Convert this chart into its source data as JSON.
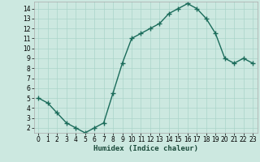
{
  "x": [
    0,
    1,
    2,
    3,
    4,
    5,
    6,
    7,
    8,
    9,
    10,
    11,
    12,
    13,
    14,
    15,
    16,
    17,
    18,
    19,
    20,
    21,
    22,
    23
  ],
  "y": [
    5.0,
    4.5,
    3.5,
    2.5,
    2.0,
    1.5,
    2.0,
    2.5,
    5.5,
    8.5,
    11.0,
    11.5,
    12.0,
    12.5,
    13.5,
    14.0,
    14.5,
    14.0,
    13.0,
    11.5,
    9.0,
    8.5,
    9.0,
    8.5
  ],
  "xlabel": "Humidex (Indice chaleur)",
  "xlim": [
    -0.5,
    23.5
  ],
  "ylim": [
    1.5,
    14.7
  ],
  "yticks": [
    2,
    3,
    4,
    5,
    6,
    7,
    8,
    9,
    10,
    11,
    12,
    13,
    14
  ],
  "xticks": [
    0,
    1,
    2,
    3,
    4,
    5,
    6,
    7,
    8,
    9,
    10,
    11,
    12,
    13,
    14,
    15,
    16,
    17,
    18,
    19,
    20,
    21,
    22,
    23
  ],
  "line_color": "#1a6b5a",
  "marker_color": "#1a6b5a",
  "bg_color": "#cce8e0",
  "grid_color": "#aad4ca",
  "tick_label_fontsize": 5.5,
  "xlabel_fontsize": 6.5,
  "marker_size": 2.0,
  "line_width": 1.0
}
